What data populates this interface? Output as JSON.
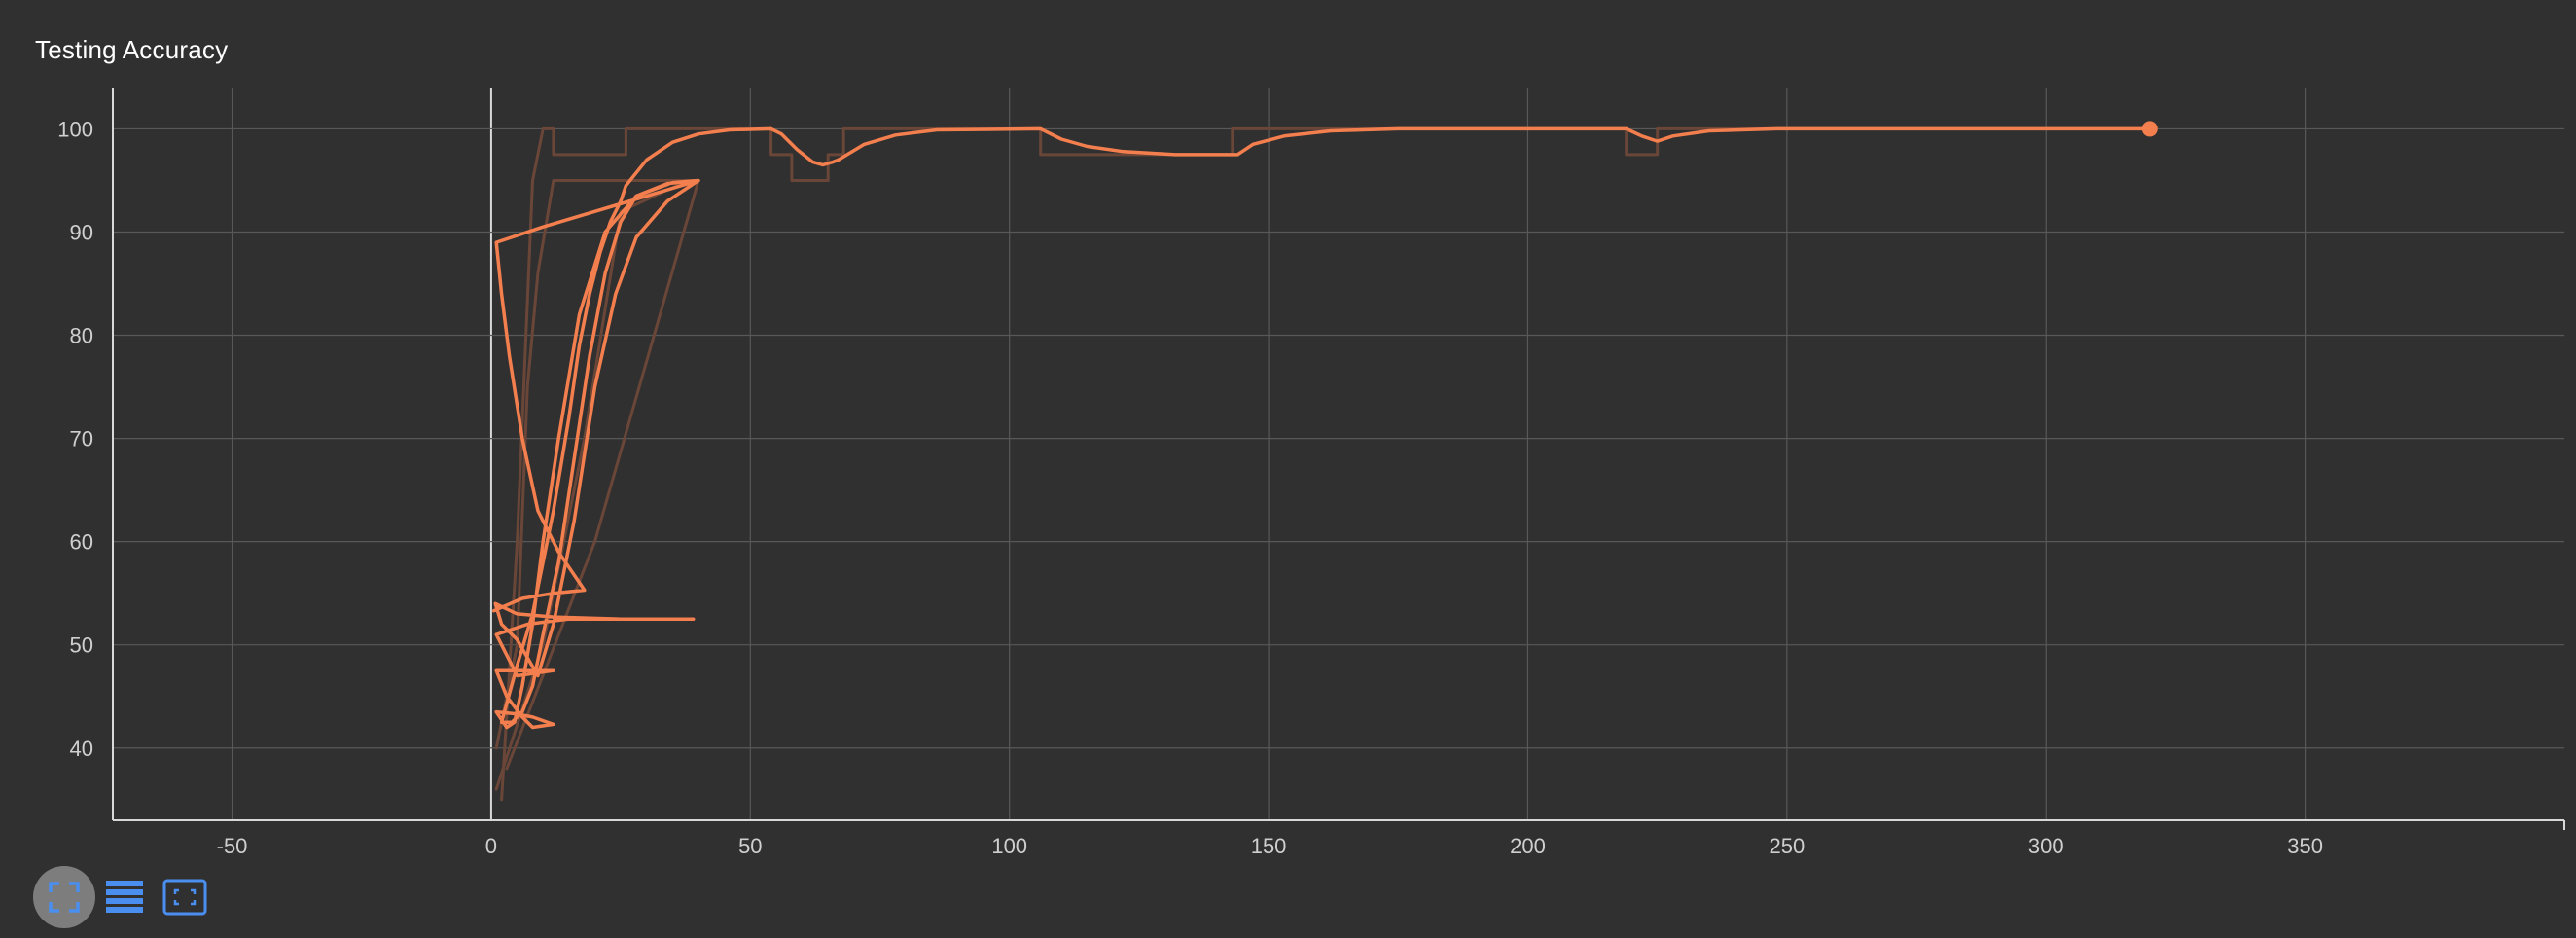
{
  "title": "Testing Accuracy",
  "colors": {
    "background": "#303030",
    "series": "#f47f4e",
    "series_faded": "#6a4638",
    "grid": "#585858",
    "axis": "#d8d8d8",
    "icon": "#4a8ff0"
  },
  "toolbar": [
    {
      "name": "fullscreen-icon",
      "active": true
    },
    {
      "name": "data-table-icon",
      "active": false
    },
    {
      "name": "fit-domain-icon",
      "active": false
    }
  ],
  "chart_data": {
    "type": "line",
    "title": "Testing Accuracy",
    "xlabel": "",
    "ylabel": "",
    "xlim": [
      -73,
      400
    ],
    "ylim": [
      33,
      104
    ],
    "x_ticks": [
      -50,
      0,
      50,
      100,
      150,
      200,
      250,
      300,
      350
    ],
    "y_ticks": [
      40,
      50,
      60,
      70,
      80,
      90,
      100
    ],
    "grid": true,
    "legend": "none",
    "series": [
      {
        "style": "smoothed",
        "points": [
          [
            0.5,
            53.3
          ],
          [
            6,
            54.5
          ],
          [
            12,
            55
          ],
          [
            18,
            55.3
          ],
          [
            13,
            59
          ],
          [
            9,
            63
          ],
          [
            6,
            70
          ],
          [
            3.5,
            78
          ],
          [
            2,
            84
          ],
          [
            1,
            89
          ],
          [
            10,
            90.5
          ],
          [
            20,
            92
          ],
          [
            30,
            93.5
          ],
          [
            40,
            95
          ],
          [
            35,
            94.8
          ],
          [
            28,
            93.5
          ],
          [
            22,
            90
          ],
          [
            17,
            82
          ],
          [
            13,
            70
          ],
          [
            10,
            60
          ],
          [
            8,
            52
          ],
          [
            6,
            46
          ],
          [
            4.5,
            42.5
          ],
          [
            3,
            42
          ],
          [
            1,
            43.5
          ],
          [
            5,
            43.3
          ],
          [
            8,
            43
          ],
          [
            12,
            42.3
          ],
          [
            8,
            42
          ],
          [
            6,
            43
          ],
          [
            4.5,
            44
          ],
          [
            3,
            45
          ],
          [
            1,
            47.5
          ],
          [
            12,
            47.5
          ],
          [
            5,
            47
          ],
          [
            1,
            51
          ],
          [
            7,
            52
          ],
          [
            15,
            52.5
          ],
          [
            25,
            52.5
          ],
          [
            39,
            52.5
          ],
          [
            25,
            52.5
          ],
          [
            12,
            52.7
          ],
          [
            5,
            53
          ],
          [
            0.8,
            54
          ],
          [
            2,
            52
          ],
          [
            5,
            50.5
          ],
          [
            9,
            47
          ],
          [
            12,
            52
          ],
          [
            16,
            62
          ],
          [
            20,
            75
          ],
          [
            24,
            84
          ],
          [
            28,
            89.5
          ],
          [
            34,
            93
          ],
          [
            40,
            95
          ],
          [
            34,
            94.7
          ],
          [
            28,
            93.5
          ],
          [
            25,
            91
          ],
          [
            22,
            86
          ],
          [
            19,
            78
          ],
          [
            16,
            68
          ],
          [
            13,
            58
          ],
          [
            10,
            51
          ],
          [
            8,
            46
          ],
          [
            6,
            43.5
          ],
          [
            4,
            42.5
          ],
          [
            2,
            42.5
          ],
          [
            5,
            48
          ],
          [
            8,
            53
          ],
          [
            10,
            58
          ],
          [
            12,
            63
          ],
          [
            15,
            72
          ],
          [
            17,
            79
          ],
          [
            19,
            84
          ],
          [
            21,
            88
          ],
          [
            23,
            91
          ],
          [
            25,
            93
          ],
          [
            26,
            94.5
          ],
          [
            30,
            97
          ],
          [
            35,
            98.7
          ],
          [
            40,
            99.5
          ],
          [
            46,
            99.9
          ],
          [
            54,
            100
          ],
          [
            56,
            99.5
          ],
          [
            59,
            98
          ],
          [
            62,
            96.8
          ],
          [
            64,
            96.5
          ],
          [
            66,
            96.8
          ],
          [
            67,
            97
          ],
          [
            72,
            98.5
          ],
          [
            78,
            99.4
          ],
          [
            86,
            99.9
          ],
          [
            106,
            100
          ],
          [
            110,
            99
          ],
          [
            115,
            98.3
          ],
          [
            122,
            97.8
          ],
          [
            132,
            97.5
          ],
          [
            144,
            97.5
          ],
          [
            147,
            98.5
          ],
          [
            153,
            99.3
          ],
          [
            162,
            99.8
          ],
          [
            175,
            100
          ],
          [
            219,
            100
          ],
          [
            222,
            99.3
          ],
          [
            225,
            98.8
          ],
          [
            228,
            99.3
          ],
          [
            235,
            99.8
          ],
          [
            248,
            100
          ],
          [
            320,
            100
          ]
        ],
        "end_marker": [
          320,
          100
        ]
      },
      {
        "style": "raw-faded",
        "points": [
          [
            2,
            35
          ],
          [
            5,
            60
          ],
          [
            8,
            95
          ],
          [
            10,
            100
          ],
          [
            12,
            100
          ],
          [
            12,
            97.5
          ],
          [
            26,
            97.5
          ],
          [
            26,
            100
          ],
          [
            54,
            100
          ],
          [
            54,
            97.5
          ],
          [
            58,
            97.5
          ],
          [
            58,
            95
          ],
          [
            65,
            95
          ],
          [
            65,
            97.5
          ],
          [
            68,
            97.5
          ],
          [
            68,
            100
          ],
          [
            106,
            100
          ],
          [
            106,
            97.5
          ],
          [
            143,
            97.5
          ],
          [
            143,
            100
          ],
          [
            219,
            100
          ],
          [
            219,
            97.5
          ],
          [
            225,
            97.5
          ],
          [
            225,
            100
          ],
          [
            320,
            100
          ]
        ]
      },
      {
        "style": "raw-faded",
        "points": [
          [
            1,
            40
          ],
          [
            5,
            50
          ],
          [
            7,
            75
          ],
          [
            9,
            86
          ],
          [
            12,
            95
          ],
          [
            20,
            95
          ],
          [
            40,
            95
          ]
        ]
      },
      {
        "style": "raw-faded",
        "points": [
          [
            1,
            36
          ],
          [
            10,
            50
          ],
          [
            18,
            70
          ],
          [
            25,
            92
          ],
          [
            38,
            95
          ]
        ]
      },
      {
        "style": "raw-faded",
        "points": [
          [
            3,
            38
          ],
          [
            20,
            60
          ],
          [
            40,
            95
          ]
        ]
      }
    ]
  }
}
